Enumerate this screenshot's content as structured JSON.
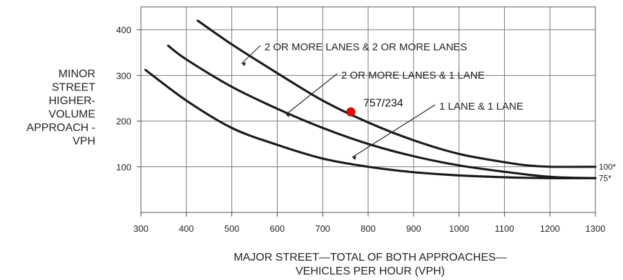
{
  "chart_data": {
    "type": "line",
    "xlabel": [
      "MAJOR STREET—TOTAL OF BOTH APPROACHES—",
      "VEHICLES PER HOUR (VPH)"
    ],
    "ylabel": [
      "MINOR",
      "STREET",
      "HIGHER-",
      "VOLUME",
      "APPROACH -",
      "VPH"
    ],
    "xlim": [
      300,
      1300
    ],
    "ylim": [
      0,
      450
    ],
    "xticks": [
      300,
      400,
      500,
      600,
      700,
      800,
      900,
      1000,
      1100,
      1200,
      1300
    ],
    "yticks": [
      100,
      200,
      300,
      400
    ],
    "grid": true,
    "series": [
      {
        "name": "2 OR MORE LANES & 2 OR MORE LANES",
        "x": [
          425,
          500,
          600,
          700,
          800,
          900,
          1000,
          1100,
          1150,
          1200,
          1300
        ],
        "y": [
          420,
          368,
          305,
          245,
          197,
          158,
          128,
          110,
          103,
          100,
          100
        ],
        "end_label": "100*"
      },
      {
        "name": "2 OR MORE LANES & 1 LANE",
        "x": [
          360,
          400,
          500,
          600,
          700,
          800,
          900,
          1000,
          1100,
          1200,
          1300
        ],
        "y": [
          365,
          335,
          275,
          227,
          185,
          150,
          123,
          103,
          89,
          78,
          75
        ],
        "end_label": "75*"
      },
      {
        "name": "1 LANE & 1 LANE",
        "x": [
          310,
          400,
          500,
          600,
          700,
          800,
          900,
          1000,
          1100,
          1200,
          1300
        ],
        "y": [
          312,
          245,
          185,
          148,
          118,
          100,
          88,
          81,
          77,
          75,
          75
        ]
      }
    ],
    "annotations": [
      {
        "text": "757/234",
        "x": 762,
        "y": 220,
        "color": "#ff0000"
      }
    ]
  }
}
